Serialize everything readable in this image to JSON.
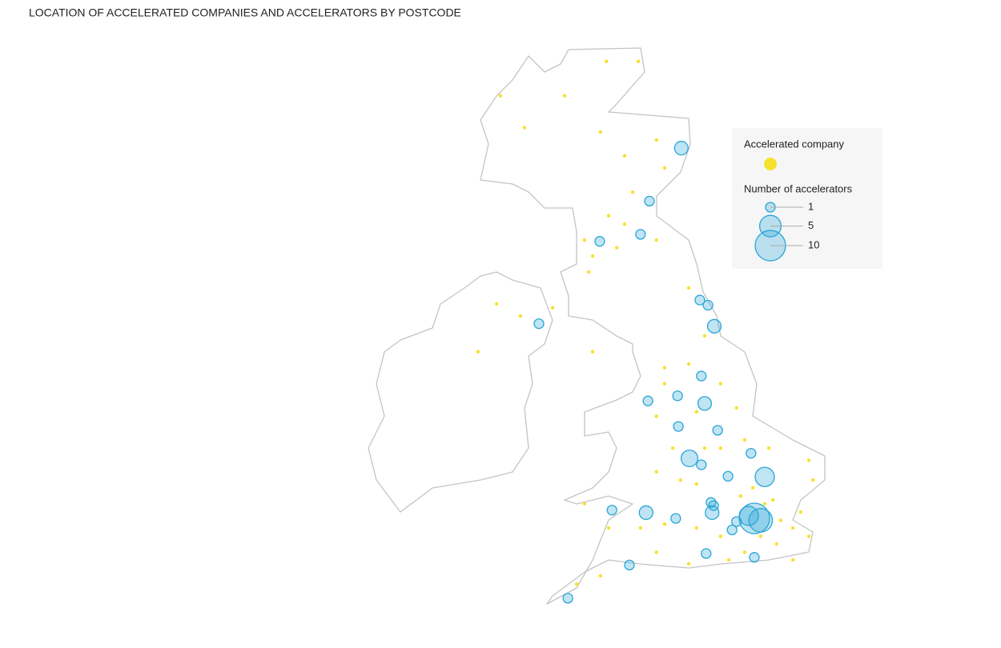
{
  "map": {
    "title": "LOCATION OF ACCELERATED COMPANIES AND ACCELERATORS BY POSTCODE",
    "legend": {
      "company_label": "Accelerated company",
      "accelerators_label": "Number of accelerators",
      "sizes": [
        1,
        5,
        10
      ]
    },
    "company_color": "#f5e12f",
    "accelerator_color": "#2aa6d6",
    "companies": [
      [
        -4.11,
        58.66
      ],
      [
        -3.25,
        58.66
      ],
      [
        -5.24,
        58.12
      ],
      [
        -6.97,
        58.12
      ],
      [
        -6.32,
        57.62
      ],
      [
        -4.27,
        57.55
      ],
      [
        -3.62,
        57.18
      ],
      [
        -2.76,
        57.43
      ],
      [
        -2.54,
        56.99
      ],
      [
        -3.4,
        56.61
      ],
      [
        -4.05,
        56.24
      ],
      [
        -4.7,
        55.86
      ],
      [
        -4.48,
        55.61
      ],
      [
        -3.83,
        55.74
      ],
      [
        -2.76,
        55.86
      ],
      [
        -4.59,
        55.36
      ],
      [
        -3.62,
        56.11
      ],
      [
        -7.07,
        54.86
      ],
      [
        -6.43,
        54.67
      ],
      [
        -5.56,
        54.8
      ],
      [
        -7.57,
        54.11
      ],
      [
        -4.48,
        54.11
      ],
      [
        -1.89,
        55.11
      ],
      [
        -1.46,
        54.36
      ],
      [
        -2.54,
        53.86
      ],
      [
        -1.89,
        53.92
      ],
      [
        -1.03,
        53.61
      ],
      [
        -2.76,
        53.1
      ],
      [
        -1.68,
        53.17
      ],
      [
        -0.6,
        53.23
      ],
      [
        -2.54,
        53.61
      ],
      [
        -2.32,
        52.6
      ],
      [
        -1.46,
        52.6
      ],
      [
        -1.03,
        52.6
      ],
      [
        -2.11,
        52.1
      ],
      [
        -1.68,
        52.04
      ],
      [
        -2.76,
        52.23
      ],
      [
        -0.38,
        52.73
      ],
      [
        0.27,
        52.6
      ],
      [
        1.35,
        52.41
      ],
      [
        1.46,
        52.1
      ],
      [
        -3.19,
        51.35
      ],
      [
        -2.54,
        51.41
      ],
      [
        -1.68,
        51.35
      ],
      [
        -1.03,
        51.22
      ],
      [
        -1.89,
        50.79
      ],
      [
        -0.81,
        50.85
      ],
      [
        0.48,
        51.1
      ],
      [
        0.92,
        51.35
      ],
      [
        1.13,
        51.6
      ],
      [
        1.35,
        51.22
      ],
      [
        0.92,
        50.85
      ],
      [
        0.38,
        51.79
      ],
      [
        -0.49,
        51.85
      ],
      [
        -4.05,
        51.35
      ],
      [
        -4.7,
        51.73
      ],
      [
        -4.27,
        50.6
      ],
      [
        -4.91,
        50.47
      ],
      [
        -2.76,
        50.97
      ],
      [
        0.05,
        51.22
      ],
      [
        -0.38,
        50.97
      ],
      [
        0.59,
        51.47
      ],
      [
        0.16,
        51.73
      ],
      [
        -0.16,
        51.98
      ]
    ],
    "accelerators": [
      {
        "lon": -2.09,
        "lat": 57.3,
        "count": 2
      },
      {
        "lon": -2.95,
        "lat": 56.47,
        "count": 1
      },
      {
        "lon": -3.19,
        "lat": 55.95,
        "count": 1
      },
      {
        "lon": -4.29,
        "lat": 55.84,
        "count": 1
      },
      {
        "lon": -5.93,
        "lat": 54.55,
        "count": 1
      },
      {
        "lon": -1.59,
        "lat": 54.92,
        "count": 1
      },
      {
        "lon": -1.37,
        "lat": 54.84,
        "count": 1
      },
      {
        "lon": -1.2,
        "lat": 54.51,
        "count": 2
      },
      {
        "lon": -1.55,
        "lat": 53.73,
        "count": 1
      },
      {
        "lon": -2.19,
        "lat": 53.42,
        "count": 1
      },
      {
        "lon": -1.46,
        "lat": 53.3,
        "count": 2
      },
      {
        "lon": -2.99,
        "lat": 53.34,
        "count": 1
      },
      {
        "lon": -1.11,
        "lat": 52.88,
        "count": 1
      },
      {
        "lon": -2.17,
        "lat": 52.94,
        "count": 1
      },
      {
        "lon": -1.87,
        "lat": 52.44,
        "count": 3
      },
      {
        "lon": -1.55,
        "lat": 52.34,
        "count": 1
      },
      {
        "lon": 0.16,
        "lat": 52.15,
        "count": 4
      },
      {
        "lon": -0.21,
        "lat": 52.52,
        "count": 1
      },
      {
        "lon": -0.83,
        "lat": 52.16,
        "count": 1
      },
      {
        "lon": -1.29,
        "lat": 51.75,
        "count": 1
      },
      {
        "lon": -1.22,
        "lat": 51.7,
        "count": 1
      },
      {
        "lon": -1.26,
        "lat": 51.59,
        "count": 2
      },
      {
        "lon": -0.12,
        "lat": 51.5,
        "count": 10
      },
      {
        "lon": 0.05,
        "lat": 51.47,
        "count": 6
      },
      {
        "lon": -0.27,
        "lat": 51.54,
        "count": 4
      },
      {
        "lon": -0.6,
        "lat": 51.45,
        "count": 1
      },
      {
        "lon": -0.72,
        "lat": 51.32,
        "count": 1
      },
      {
        "lon": -3.04,
        "lat": 51.59,
        "count": 2
      },
      {
        "lon": -3.96,
        "lat": 51.63,
        "count": 1
      },
      {
        "lon": -2.24,
        "lat": 51.5,
        "count": 1
      },
      {
        "lon": -1.42,
        "lat": 50.95,
        "count": 1
      },
      {
        "lon": -0.12,
        "lat": 50.89,
        "count": 1
      },
      {
        "lon": -3.49,
        "lat": 50.77,
        "count": 1
      },
      {
        "lon": -5.15,
        "lat": 50.25,
        "count": 1
      }
    ]
  }
}
